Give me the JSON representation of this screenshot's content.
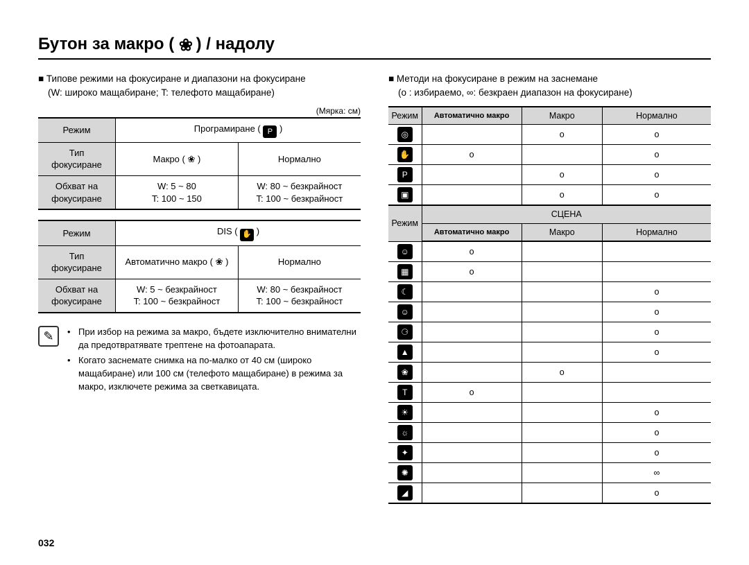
{
  "title_pre": "Бутон за макро (",
  "title_post": ") / надолу",
  "title_icon": "❀",
  "pagenum": "032",
  "left": {
    "heading1": "Типове режими на фокусиране и диапазони на фокусиране",
    "heading2": "(W: широко мащабиране; T: телефото мащабиране)",
    "unit": "(Мярка: см)",
    "labels": {
      "mode": "Режим",
      "focus_type": "Тип фокусиране",
      "focus_range": "Обхват на фокусиране"
    },
    "table1": {
      "mode_label": "Програмиране (",
      "mode_icon": "P",
      "col1": "Макро (",
      "col1_icon": "❀",
      "col2": "Нормално",
      "range1a": "W: 5 ~ 80",
      "range1b": "T: 100 ~ 150",
      "range2a": "W: 80 ~ безкрайност",
      "range2b": "T: 100 ~ безкрайност"
    },
    "table2": {
      "mode_label": "DIS (",
      "mode_icon": "✋",
      "col1": "Автоматично макро (",
      "col1_icon": "❀",
      "col2": "Нормално",
      "range1a": "W: 5 ~ безкрайност",
      "range1b": "T: 100 ~ безкрайност",
      "range2a": "W: 80 ~ безкрайност",
      "range2b": "T: 100 ~ безкрайност"
    },
    "note1": "При избор на режима за макро, бъдете изключително внимателни да предотвратявате трептене на фотоапарата.",
    "note2": "Когато заснемате снимка на по-малко от 40 см (широко мащабиране) или 100 см (телефото мащабиране) в режима за макро, изключете режима за светкавицата."
  },
  "right": {
    "heading1": "Методи на фокусиране в режим на заснемане",
    "heading2": "(o : избираемо, ∞: безкраен диапазон на фокусиране)",
    "headers": {
      "mode": "Режим",
      "auto_macro": "Автоматично макро",
      "macro": "Макро",
      "normal": "Нормално",
      "scene": "СЦЕНА"
    },
    "top_rows": [
      {
        "icon": "◎",
        "am": "",
        "m": "o",
        "n": "o"
      },
      {
        "icon": "✋",
        "am": "o",
        "m": "",
        "n": "o"
      },
      {
        "icon": "P",
        "am": "",
        "m": "o",
        "n": "o"
      },
      {
        "icon": "▣",
        "am": "",
        "m": "o",
        "n": "o"
      }
    ],
    "scene_rows": [
      {
        "icon": "☺",
        "am": "o",
        "m": "",
        "n": ""
      },
      {
        "icon": "▦",
        "am": "o",
        "m": "",
        "n": ""
      },
      {
        "icon": "☾",
        "am": "",
        "m": "",
        "n": "o"
      },
      {
        "icon": "☺",
        "am": "",
        "m": "",
        "n": "o"
      },
      {
        "icon": "⚆",
        "am": "",
        "m": "",
        "n": "o"
      },
      {
        "icon": "▲",
        "am": "",
        "m": "",
        "n": "o"
      },
      {
        "icon": "❀",
        "am": "",
        "m": "o",
        "n": ""
      },
      {
        "icon": "T",
        "am": "o",
        "m": "",
        "n": ""
      },
      {
        "icon": "☀",
        "am": "",
        "m": "",
        "n": "o"
      },
      {
        "icon": "☼",
        "am": "",
        "m": "",
        "n": "o"
      },
      {
        "icon": "✦",
        "am": "",
        "m": "",
        "n": "o"
      },
      {
        "icon": "✺",
        "am": "",
        "m": "",
        "n": "∞"
      },
      {
        "icon": "◢",
        "am": "",
        "m": "",
        "n": "o"
      }
    ]
  }
}
